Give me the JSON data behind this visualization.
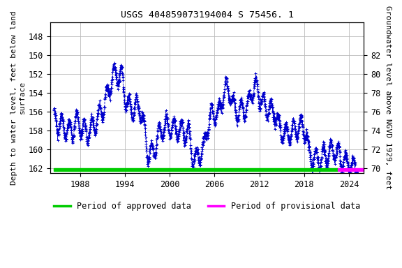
{
  "title": "USGS 404859073194004 S 75456. 1",
  "left_ylabel": "Depth to water level, feet below land\nsurface",
  "right_ylabel": "Groundwater level above NGVD 1929, feet",
  "xlim": [
    1984.0,
    2026.0
  ],
  "ylim_left": [
    162.5,
    146.5
  ],
  "ylim_right": [
    69.5,
    85.5
  ],
  "left_yticks": [
    148,
    150,
    152,
    154,
    156,
    158,
    160,
    162
  ],
  "right_yticks": [
    82,
    80,
    78,
    76,
    74,
    72,
    70
  ],
  "xticks": [
    1988,
    1994,
    2000,
    2006,
    2012,
    2018,
    2024
  ],
  "data_color": "#0000cc",
  "approved_color": "#00cc00",
  "provisional_color": "#ff00ff",
  "background_color": "#ffffff",
  "grid_color": "#bbbbbb",
  "title_fontsize": 9.5,
  "axis_fontsize": 8,
  "tick_fontsize": 8.5,
  "legend_fontsize": 8.5,
  "base_years": [
    1984.5,
    1985.0,
    1985.5,
    1986.0,
    1986.5,
    1987.0,
    1987.3,
    1987.6,
    1988.0,
    1988.5,
    1989.0,
    1989.5,
    1990.0,
    1990.5,
    1991.0,
    1991.5,
    1992.0,
    1992.3,
    1992.6,
    1993.0,
    1993.3,
    1993.6,
    1994.0,
    1994.5,
    1995.0,
    1995.5,
    1996.0,
    1996.5,
    1997.0,
    1997.3,
    1997.6,
    1998.0,
    1998.5,
    1999.0,
    1999.5,
    2000.0,
    2000.5,
    2001.0,
    2001.5,
    2002.0,
    2002.5,
    2003.0,
    2003.3,
    2003.6,
    2004.0,
    2004.5,
    2005.0,
    2005.5,
    2006.0,
    2006.5,
    2007.0,
    2007.3,
    2007.6,
    2008.0,
    2008.5,
    2009.0,
    2009.5,
    2010.0,
    2010.5,
    2011.0,
    2011.3,
    2011.6,
    2012.0,
    2012.5,
    2013.0,
    2013.5,
    2014.0,
    2014.5,
    2015.0,
    2015.5,
    2016.0,
    2016.5,
    2017.0,
    2017.5,
    2018.0,
    2018.3,
    2018.6,
    2019.0,
    2019.5,
    2020.0,
    2020.5,
    2021.0,
    2021.5,
    2022.0,
    2022.5,
    2023.0,
    2023.5,
    2024.0,
    2024.5,
    2025.0
  ],
  "base_values": [
    156.8,
    157.2,
    157.5,
    157.8,
    157.9,
    158.0,
    157.3,
    157.0,
    157.5,
    158.0,
    158.2,
    157.8,
    157.2,
    156.5,
    155.8,
    154.5,
    153.2,
    152.3,
    152.1,
    152.0,
    152.0,
    152.2,
    154.5,
    155.5,
    155.8,
    155.5,
    155.5,
    157.5,
    160.0,
    160.5,
    160.5,
    159.8,
    158.5,
    157.8,
    157.5,
    157.5,
    157.8,
    157.8,
    158.0,
    158.0,
    158.2,
    160.5,
    161.0,
    161.0,
    160.5,
    160.0,
    157.5,
    156.5,
    156.0,
    156.5,
    154.5,
    153.8,
    153.5,
    153.8,
    155.5,
    156.0,
    155.8,
    155.5,
    155.5,
    153.8,
    153.5,
    153.5,
    154.5,
    155.2,
    155.5,
    155.8,
    155.8,
    157.5,
    158.0,
    158.5,
    158.2,
    158.0,
    157.8,
    157.5,
    157.8,
    158.5,
    160.5,
    160.8,
    161.0,
    161.0,
    160.8,
    160.5,
    160.2,
    160.0,
    160.5,
    161.0,
    161.5,
    161.5,
    162.0,
    162.0
  ]
}
